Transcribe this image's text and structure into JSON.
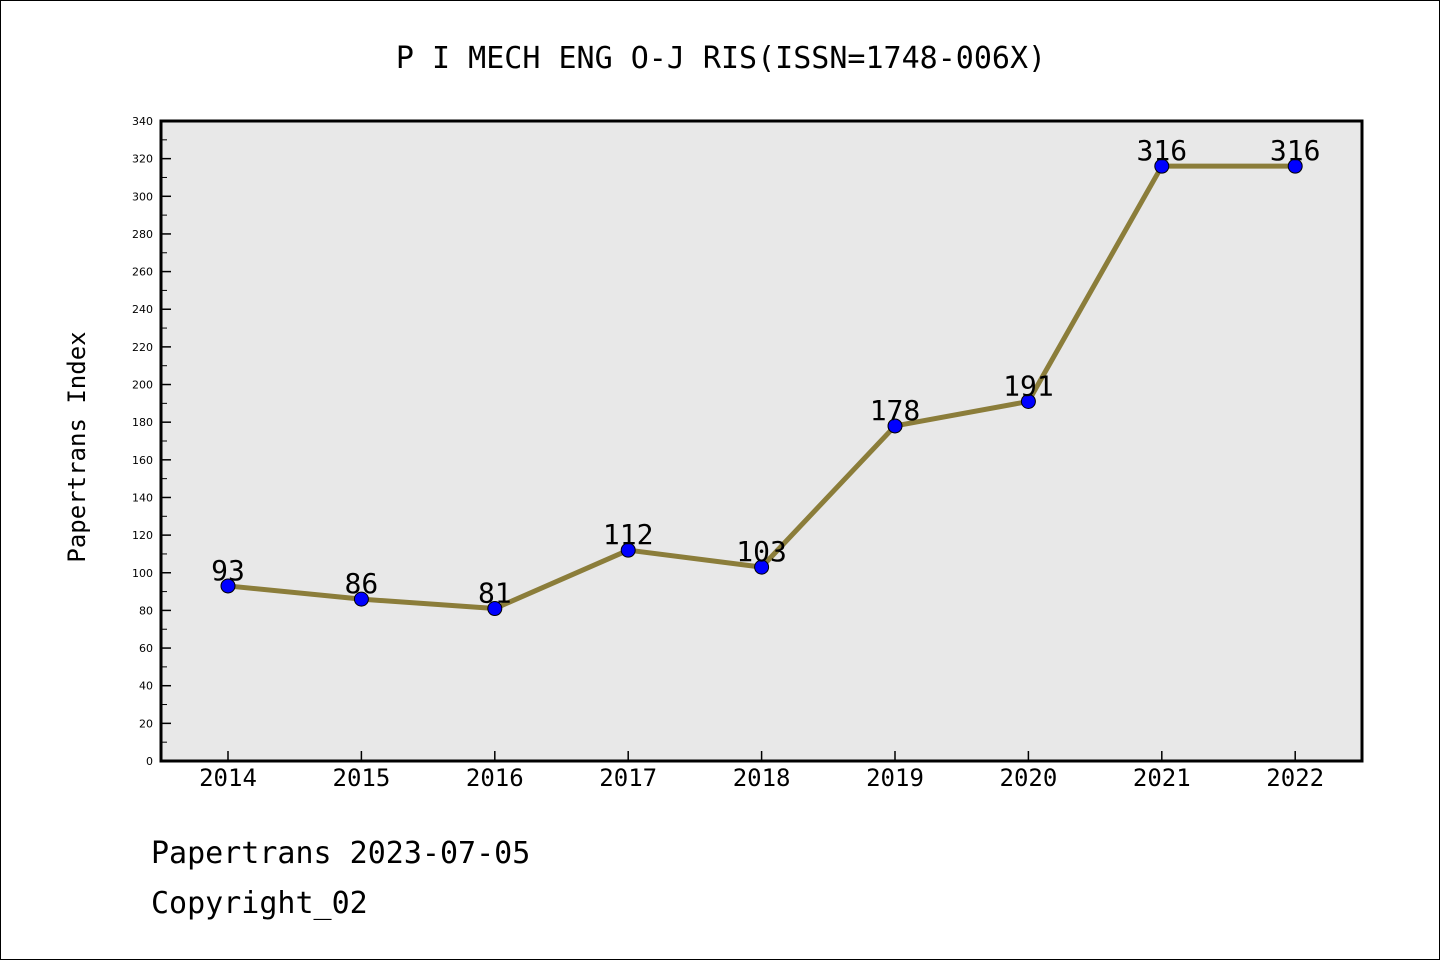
{
  "chart_data": {
    "type": "line",
    "title": "P I MECH ENG O-J RIS(ISSN=1748-006X)",
    "xlabel": "",
    "ylabel": "Papertrans Index",
    "categories": [
      "2014",
      "2015",
      "2016",
      "2017",
      "2018",
      "2019",
      "2020",
      "2021",
      "2022"
    ],
    "values": [
      93,
      86,
      81,
      112,
      103,
      178,
      191,
      316,
      316
    ],
    "data_labels": [
      "93",
      "86",
      "81",
      "112",
      "103",
      "178",
      "191",
      "316",
      "316"
    ],
    "ylim": [
      0,
      340
    ],
    "yticks": [
      "0",
      "20",
      "40",
      "60",
      "80",
      "100",
      "120",
      "140",
      "160",
      "180",
      "200",
      "220",
      "240",
      "260",
      "280",
      "300",
      "320",
      "340"
    ],
    "grid": false,
    "legend": "none",
    "colors": {
      "line": "#8b7d3a",
      "marker": "#0000ff",
      "plot_background": "#e8e8e8"
    }
  },
  "footer": {
    "line1": "Papertrans 2023-07-05",
    "line2": "Copyright_02"
  }
}
